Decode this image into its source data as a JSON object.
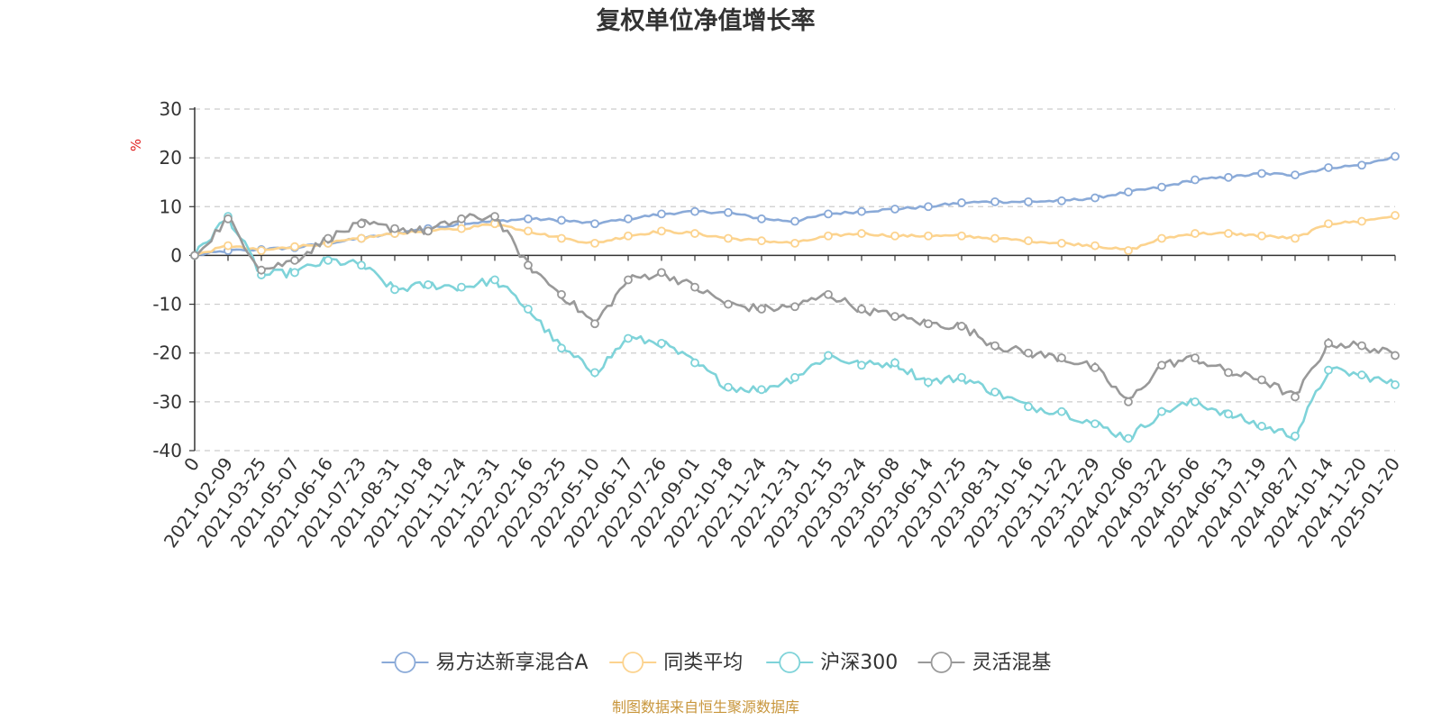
{
  "chart_data": {
    "type": "line",
    "title": "复权单位净值增长率",
    "ylabel": "%",
    "xlabel": "",
    "ylim": [
      -40,
      30
    ],
    "yticks": [
      30,
      20,
      10,
      0,
      -10,
      -20,
      -30,
      -40
    ],
    "grid": "horizontal-dashed",
    "legend_position": "bottom-center",
    "source": "制图数据来自恒生聚源数据库",
    "categories": [
      "0",
      "2021-02-09",
      "2021-03-25",
      "2021-05-07",
      "2021-06-16",
      "2021-07-23",
      "2021-08-31",
      "2021-10-18",
      "2021-11-24",
      "2021-12-31",
      "2022-02-16",
      "2022-03-25",
      "2022-05-10",
      "2022-06-17",
      "2022-07-26",
      "2022-09-01",
      "2022-10-18",
      "2022-11-24",
      "2022-12-31",
      "2023-02-15",
      "2023-03-24",
      "2023-05-08",
      "2023-06-14",
      "2023-07-25",
      "2023-08-31",
      "2023-10-16",
      "2023-11-22",
      "2023-12-29",
      "2024-02-06",
      "2024-03-22",
      "2024-05-06",
      "2024-06-13",
      "2024-07-19",
      "2024-08-27",
      "2024-10-14",
      "2024-11-20",
      "2025-01-20"
    ],
    "series": [
      {
        "name": "易方达新享混合A",
        "color": "#8aaad8",
        "values": [
          0,
          1.0,
          1.2,
          1.6,
          2.5,
          3.5,
          4.5,
          5.5,
          6.5,
          7.0,
          7.5,
          7.2,
          6.5,
          7.5,
          8.5,
          9.0,
          8.8,
          7.5,
          7.0,
          8.5,
          9.0,
          9.5,
          10.0,
          10.8,
          11.0,
          11.0,
          11.2,
          11.8,
          13.0,
          14.0,
          15.5,
          16.0,
          16.8,
          16.5,
          18.0,
          18.5,
          20.3
        ]
      },
      {
        "name": "同类平均",
        "color": "#fcd38e",
        "values": [
          0,
          2.0,
          1.0,
          1.8,
          2.5,
          3.5,
          4.5,
          5.0,
          5.5,
          6.5,
          5.0,
          3.5,
          2.5,
          4.0,
          5.0,
          4.5,
          3.5,
          3.0,
          2.5,
          4.0,
          4.5,
          4.0,
          4.0,
          4.0,
          3.5,
          3.0,
          2.5,
          2.0,
          1.0,
          3.5,
          4.5,
          4.5,
          4.0,
          3.5,
          6.5,
          7.0,
          8.2
        ]
      },
      {
        "name": "沪深300",
        "color": "#7ed3d9",
        "values": [
          0,
          8.0,
          -4.0,
          -3.5,
          -1.0,
          -2.0,
          -7.0,
          -6.0,
          -6.5,
          -5.0,
          -11.0,
          -19.0,
          -24.0,
          -17.0,
          -18.0,
          -22.0,
          -27.0,
          -27.5,
          -25.0,
          -20.5,
          -22.5,
          -22.0,
          -26.0,
          -25.0,
          -28.0,
          -31.0,
          -32.0,
          -34.5,
          -37.5,
          -32.0,
          -30.0,
          -32.5,
          -35.0,
          -37.0,
          -23.5,
          -24.5,
          -26.5
        ]
      },
      {
        "name": "灵活混基",
        "color": "#999999",
        "values": [
          0,
          7.5,
          -3.0,
          -1.0,
          3.5,
          6.5,
          5.5,
          5.0,
          7.5,
          8.0,
          -2.0,
          -8.0,
          -14.0,
          -5.0,
          -3.5,
          -6.5,
          -10.0,
          -11.0,
          -10.5,
          -8.0,
          -11.0,
          -12.5,
          -14.0,
          -14.5,
          -18.5,
          -20.0,
          -21.0,
          -23.0,
          -30.0,
          -22.5,
          -21.0,
          -24.0,
          -25.5,
          -29.0,
          -18.0,
          -18.5,
          -20.5
        ]
      }
    ]
  }
}
